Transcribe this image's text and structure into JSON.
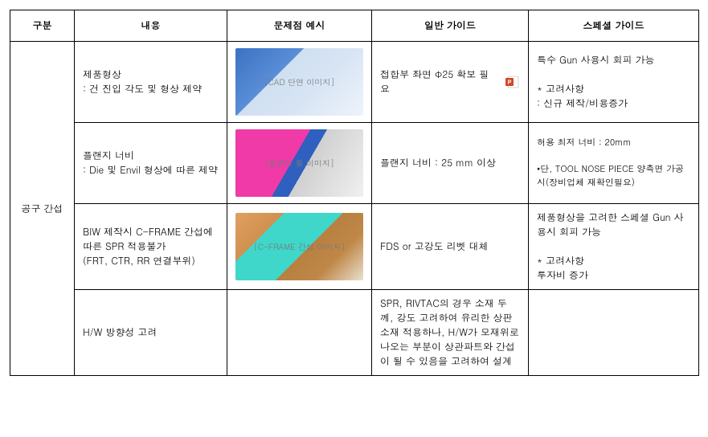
{
  "headers": {
    "category": "구분",
    "content": "내용",
    "example": "문제점 예시",
    "general": "일반 가이드",
    "special": "스페셜 가이드"
  },
  "category_label": "공구 간섭",
  "rows": [
    {
      "content": "제품형상\n: 건 진입 각도 및 형상 제약",
      "example_alt": "[CAD 단면 이미지]",
      "general": "접합부 좌면 Φ25  확보 필요",
      "special": "특수 Gun 사용시 회피 가능\n\n* 고려사항\n  : 신규 제작/비용증가"
    },
    {
      "content": "플랜지 너비\n: Die 및 Envil 형상에 따른 제약",
      "example_alt": "[플랜지 툴 이미지]",
      "general": "플랜지 너비 : 25 mm 이상",
      "special": "허용 최저 너비 : 20mm\n\n•단, TOOL NOSE PIECE 양측면 가공시(장비업체 재확인필요)"
    },
    {
      "content": "BIW 제작시 C-FRAME 간섭에 따른 SPR 적용불가\n(FRT, CTR, RR 연결부위)",
      "example_alt": "[C-FRAME 간섭 이미지]",
      "general": "FDS or 고강도 리벳 대체",
      "special": "제품형상을 고려한 스페셜 Gun 사용시 회피 가능\n\n* 고려사항\n  투자비 증가"
    },
    {
      "content": "H/W 방향성 고려",
      "example_alt": "",
      "general": "SPR, RIVTAC의 경우 소재 두께, 강도 고려하여 유리한 상판소재 적용하나, H/W가 모재위로 나오는 부분이 상관파트와 간섭이 될 수 있음을 고려하여 설계",
      "special": ""
    }
  ],
  "ppt_icon": {
    "fill": "#d24726",
    "accent": "#ffffff"
  }
}
